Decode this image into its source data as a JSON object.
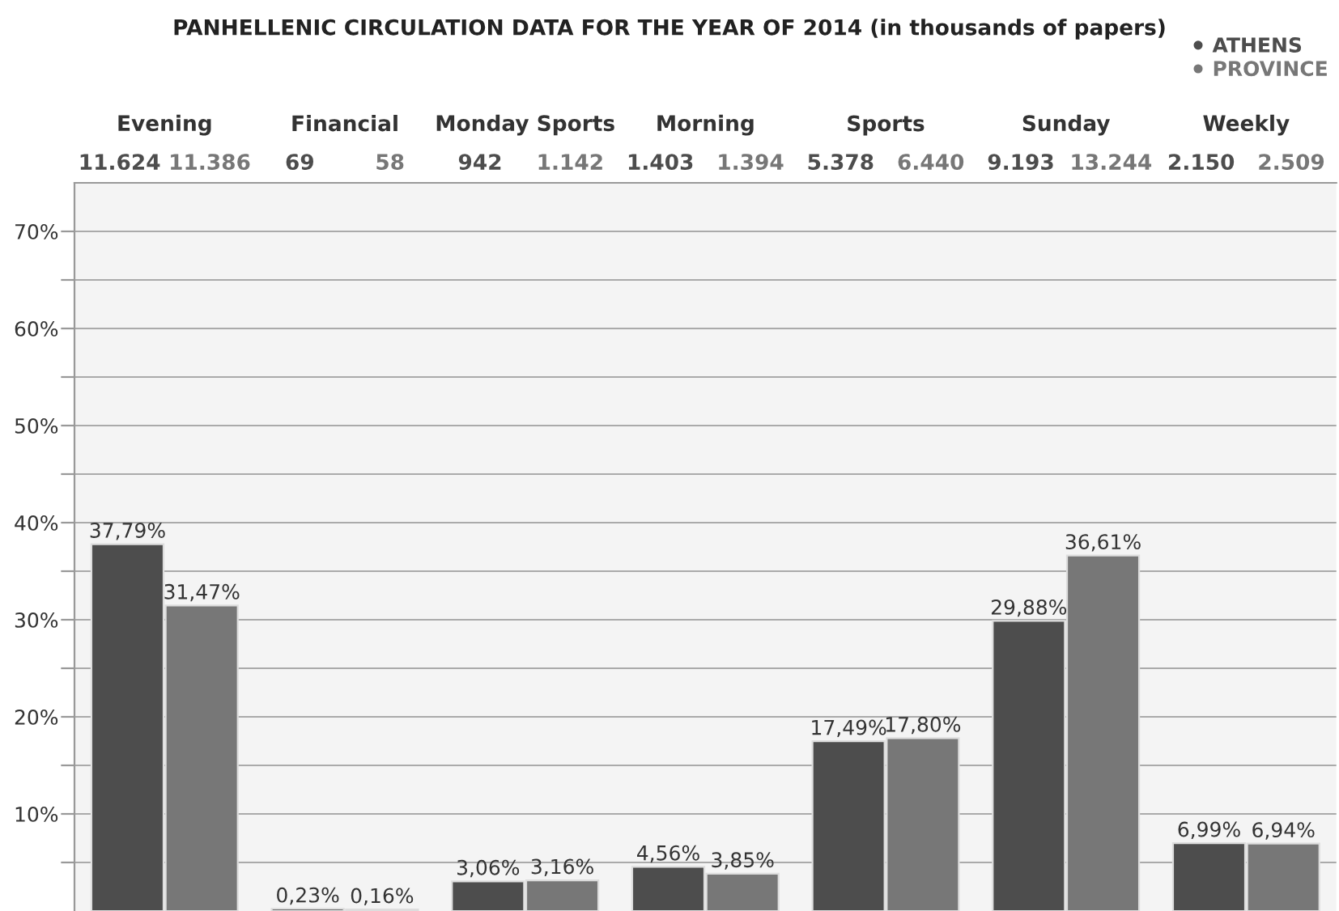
{
  "chart_data": {
    "type": "bar",
    "title": "PANHELLENIC CIRCULATION DATA FOR THE YEAR OF 2014 (in thousands of papers)",
    "categories": [
      "Evening",
      "Financial",
      "Monday Sports",
      "Morning",
      "Sports",
      "Sunday",
      "Weekly"
    ],
    "series": [
      {
        "name": "ATHENS",
        "color": "#4d4d4d",
        "values": [
          37.79,
          0.23,
          3.06,
          4.56,
          17.49,
          29.88,
          6.99
        ],
        "value_labels": [
          "37,79%",
          "0,23%",
          "3,06%",
          "4,56%",
          "17,49%",
          "29,88%",
          "6,99%"
        ]
      },
      {
        "name": "PROVINCE",
        "color": "#777777",
        "values": [
          31.47,
          0.16,
          3.16,
          3.85,
          17.8,
          36.61,
          6.94
        ],
        "value_labels": [
          "31,47%",
          "0,16%",
          "3,16%",
          "3,85%",
          "17,80%",
          "36,61%",
          "6,94%"
        ]
      }
    ],
    "annotations": [
      "11.624",
      "11.386",
      "69",
      "58",
      "942",
      "1.142",
      "1.403",
      "1.394",
      "5.378",
      "6.440",
      "9.193",
      "13.244",
      "2.150",
      "2.509"
    ],
    "ylim": [
      0,
      75
    ],
    "yticks": [
      {
        "value": 5,
        "label": null
      },
      {
        "value": 10,
        "label": "10%"
      },
      {
        "value": 15,
        "label": null
      },
      {
        "value": 20,
        "label": "20%"
      },
      {
        "value": 25,
        "label": null
      },
      {
        "value": 30,
        "label": "30%"
      },
      {
        "value": 35,
        "label": null
      },
      {
        "value": 40,
        "label": "40%"
      },
      {
        "value": 45,
        "label": null
      },
      {
        "value": 50,
        "label": "50%"
      },
      {
        "value": 55,
        "label": null
      },
      {
        "value": 60,
        "label": "60%"
      },
      {
        "value": 65,
        "label": null
      },
      {
        "value": 70,
        "label": "70%"
      }
    ],
    "grid": "y",
    "legend": "top right"
  }
}
